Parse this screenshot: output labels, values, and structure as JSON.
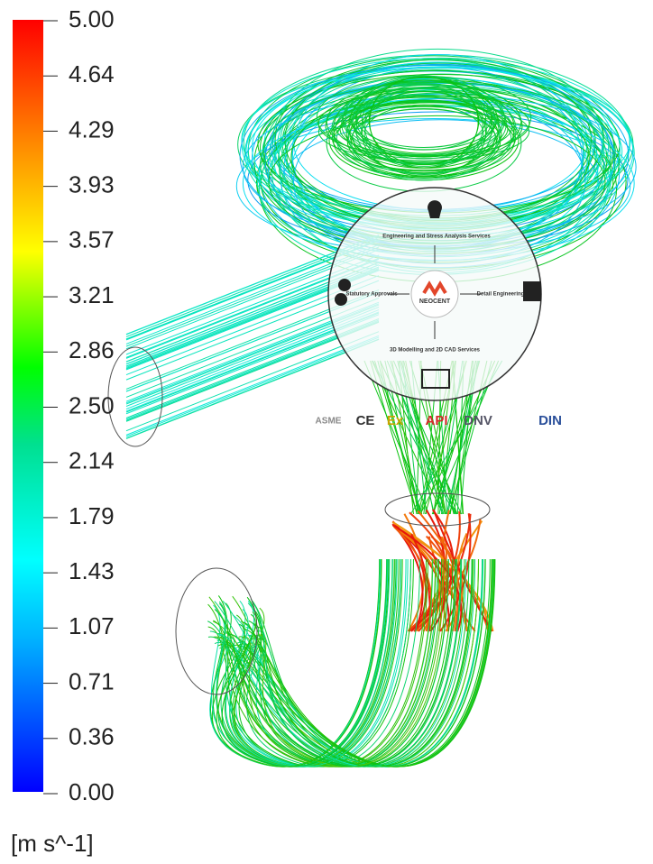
{
  "legend": {
    "ticks": [
      "5.00",
      "4.64",
      "4.29",
      "3.93",
      "3.57",
      "3.21",
      "2.86",
      "2.50",
      "2.14",
      "1.79",
      "1.43",
      "1.07",
      "0.71",
      "0.36",
      "0.00"
    ],
    "unit": "[m s^-1]"
  },
  "overlay": {
    "top": "Engineering and Stress Analysis Services",
    "left": "Statutory Approvals",
    "center": "NEOCENT",
    "right": "Detail Engineering",
    "bottom": "3D Modelling and 2D CAD Services"
  },
  "logos": [
    "ASME",
    "CE",
    "Ex",
    "API",
    "DNV",
    "DIN"
  ]
}
